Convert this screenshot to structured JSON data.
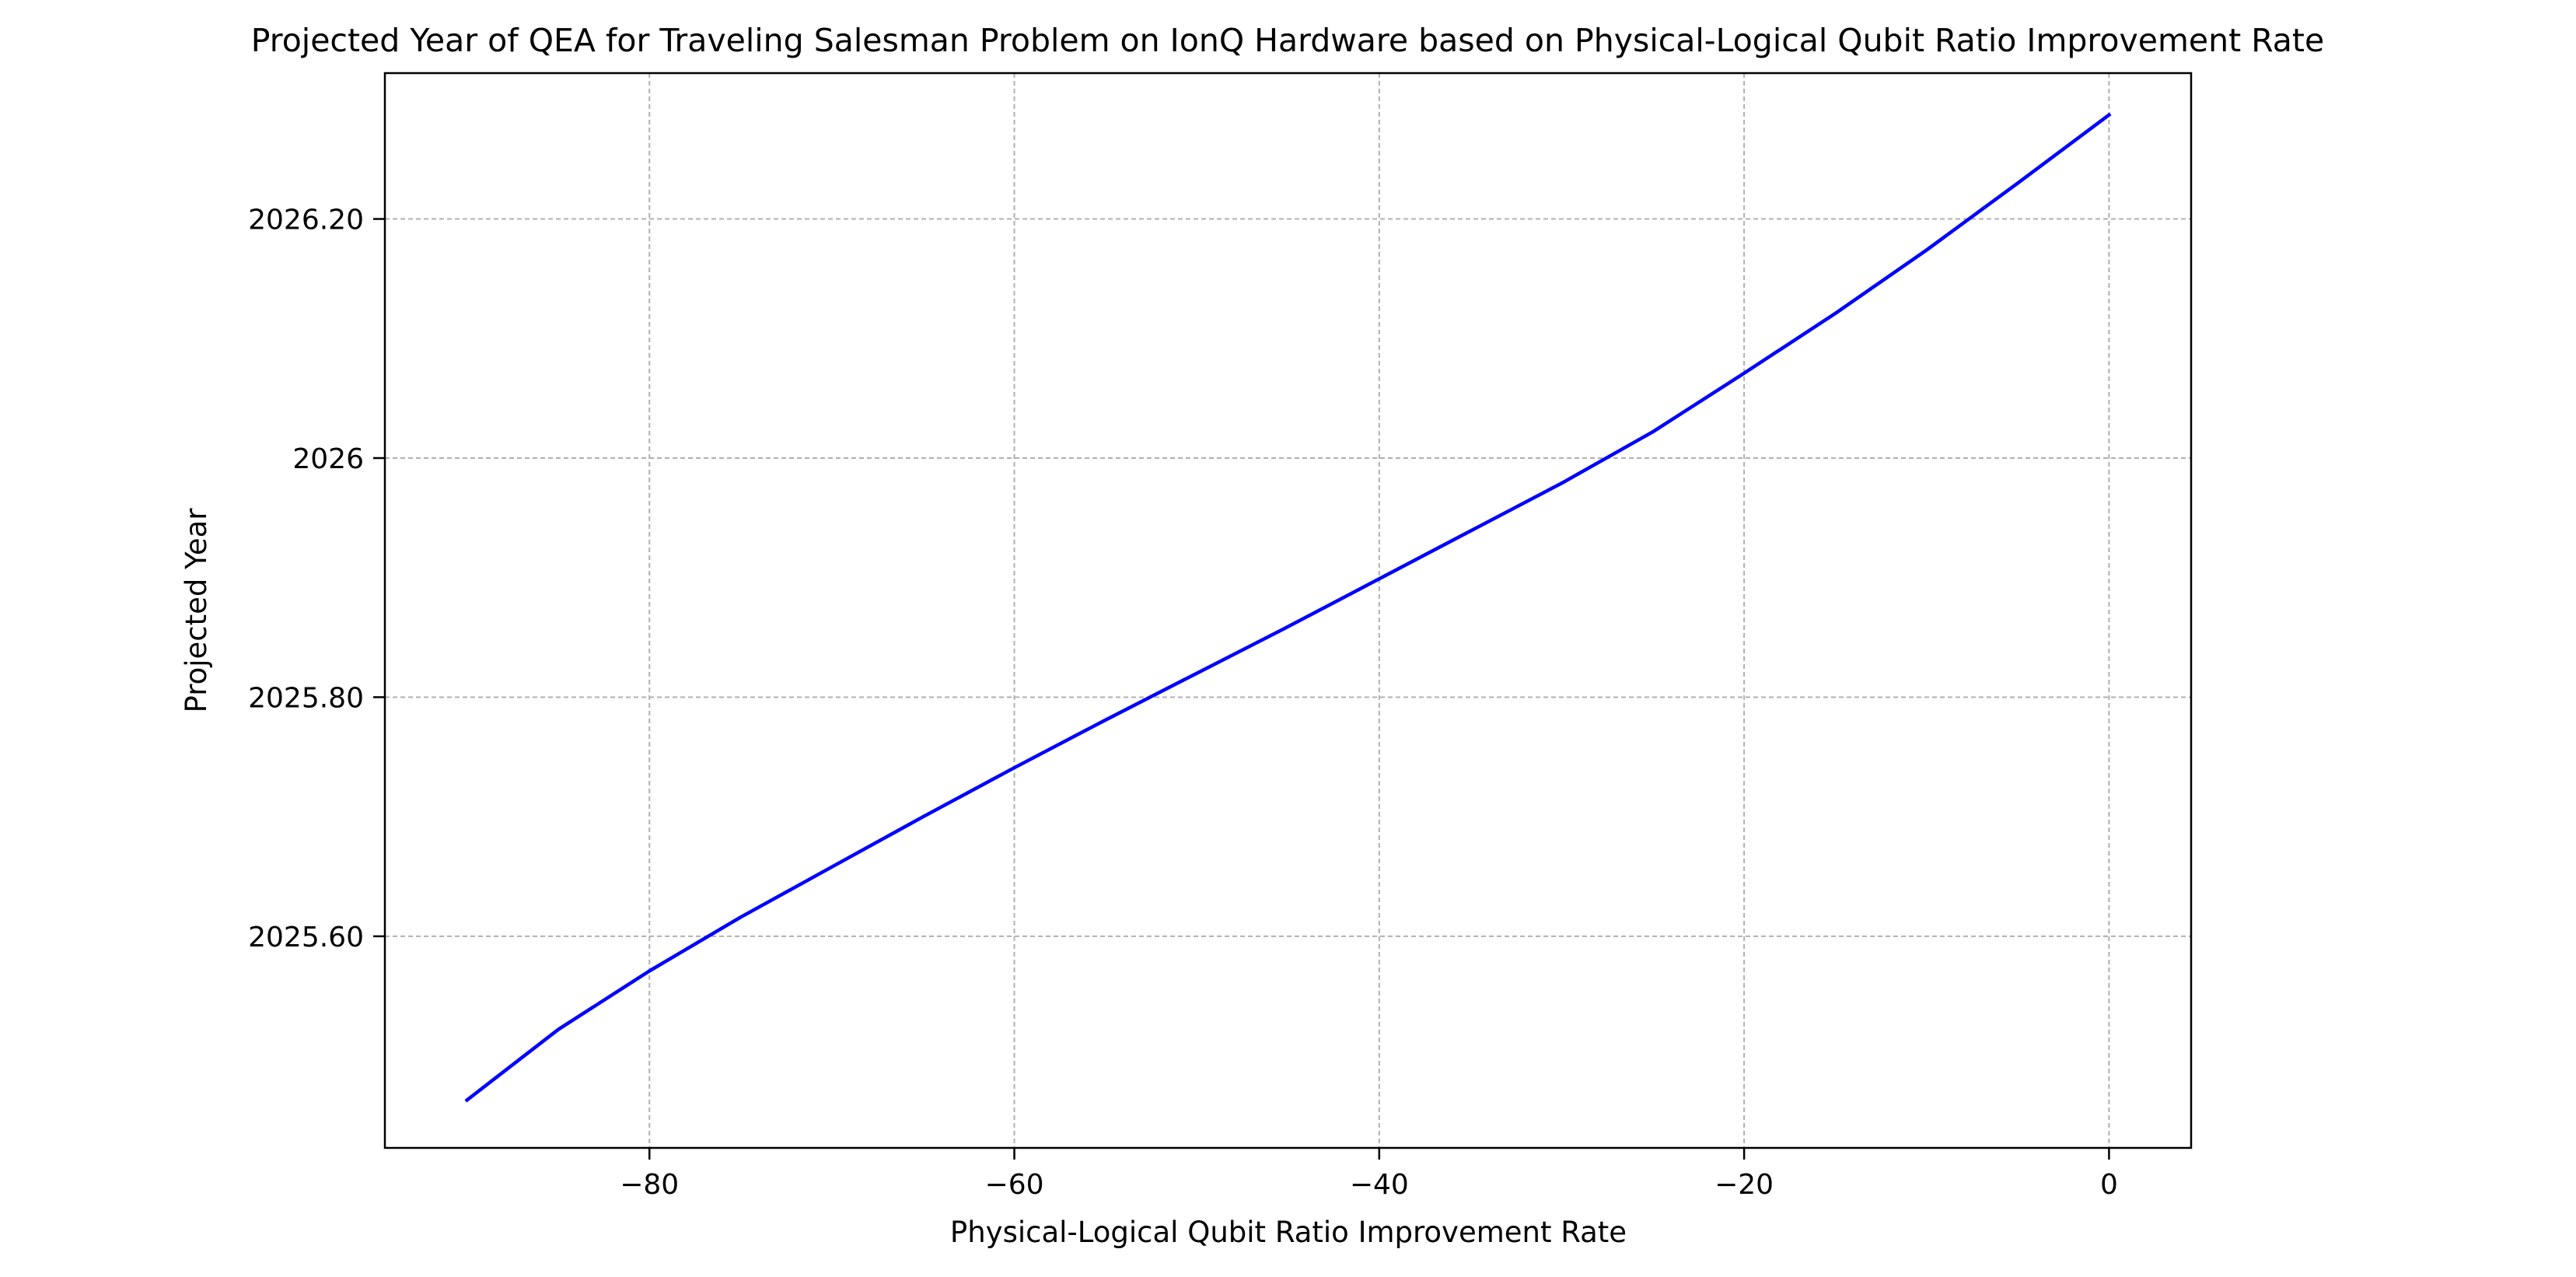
{
  "chart_data": {
    "type": "line",
    "title": "Projected Year of QEA for Traveling Salesman Problem on IonQ Hardware based on Physical-Logical Qubit Ratio Improvement Rate",
    "xlabel": "Physical-Logical Qubit Ratio Improvement Rate",
    "ylabel": "Projected Year",
    "xlim": [
      -94.5,
      4.5
    ],
    "ylim": [
      2025.423,
      2026.322
    ],
    "grid": true,
    "x_ticks": [
      {
        "value": -80,
        "label": "−80"
      },
      {
        "value": -60,
        "label": "−60"
      },
      {
        "value": -40,
        "label": "−40"
      },
      {
        "value": -20,
        "label": "−20"
      },
      {
        "value": 0,
        "label": "0"
      }
    ],
    "y_ticks": [
      {
        "value": 2025.6,
        "label": "2025.60"
      },
      {
        "value": 2025.8,
        "label": "2025.80"
      },
      {
        "value": 2026.0,
        "label": "2026"
      },
      {
        "value": 2026.2,
        "label": "2026.20"
      }
    ],
    "series": [
      {
        "color": "#0000ff",
        "x": [
          -90,
          -85,
          -80,
          -75,
          -70,
          -65,
          -60,
          -55,
          -50,
          -45,
          -40,
          -35,
          -30,
          -25,
          -20,
          -15,
          -10,
          -5,
          0
        ],
        "y": [
          2025.463,
          2025.522,
          2025.571,
          2025.616,
          2025.658,
          2025.7,
          2025.741,
          2025.781,
          2025.82,
          2025.859,
          2025.899,
          2025.939,
          2025.979,
          2026.022,
          2026.071,
          2026.121,
          2026.174,
          2026.23,
          2026.287
        ]
      }
    ]
  }
}
